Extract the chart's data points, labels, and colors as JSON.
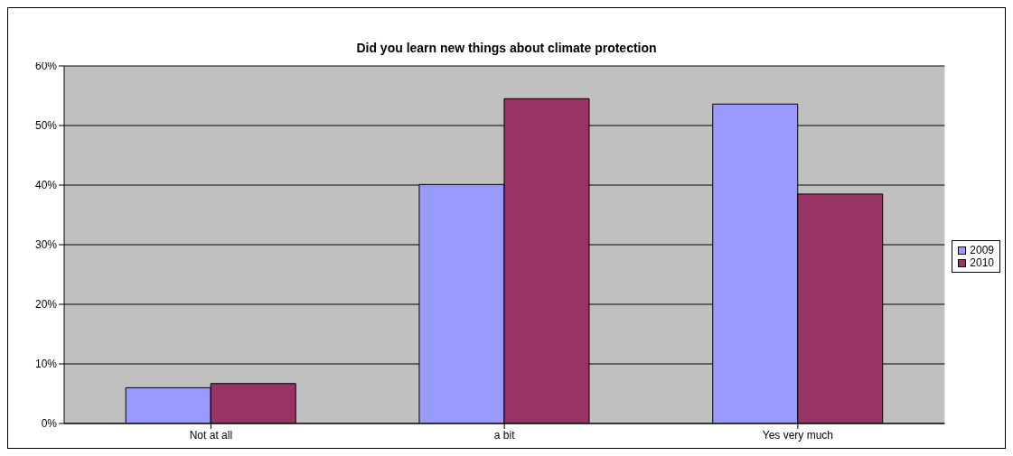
{
  "chart_data": {
    "type": "bar",
    "title": "Did you learn new things about climate protection",
    "categories": [
      "Not at all",
      "a bit",
      "Yes very much"
    ],
    "series": [
      {
        "name": "2009",
        "color": "#9999ff",
        "values": [
          6.0,
          40.1,
          53.6
        ]
      },
      {
        "name": "2010",
        "color": "#993366",
        "values": [
          6.7,
          54.5,
          38.5
        ]
      }
    ],
    "ylim": [
      0,
      60
    ],
    "yticks": [
      {
        "value": 0,
        "label": "0%"
      },
      {
        "value": 10,
        "label": "10%"
      },
      {
        "value": 20,
        "label": "20%"
      },
      {
        "value": 30,
        "label": "30%"
      },
      {
        "value": 40,
        "label": "40%"
      },
      {
        "value": 50,
        "label": "50%"
      },
      {
        "value": 60,
        "label": "60%"
      }
    ],
    "grid": "y",
    "legend": "right"
  }
}
